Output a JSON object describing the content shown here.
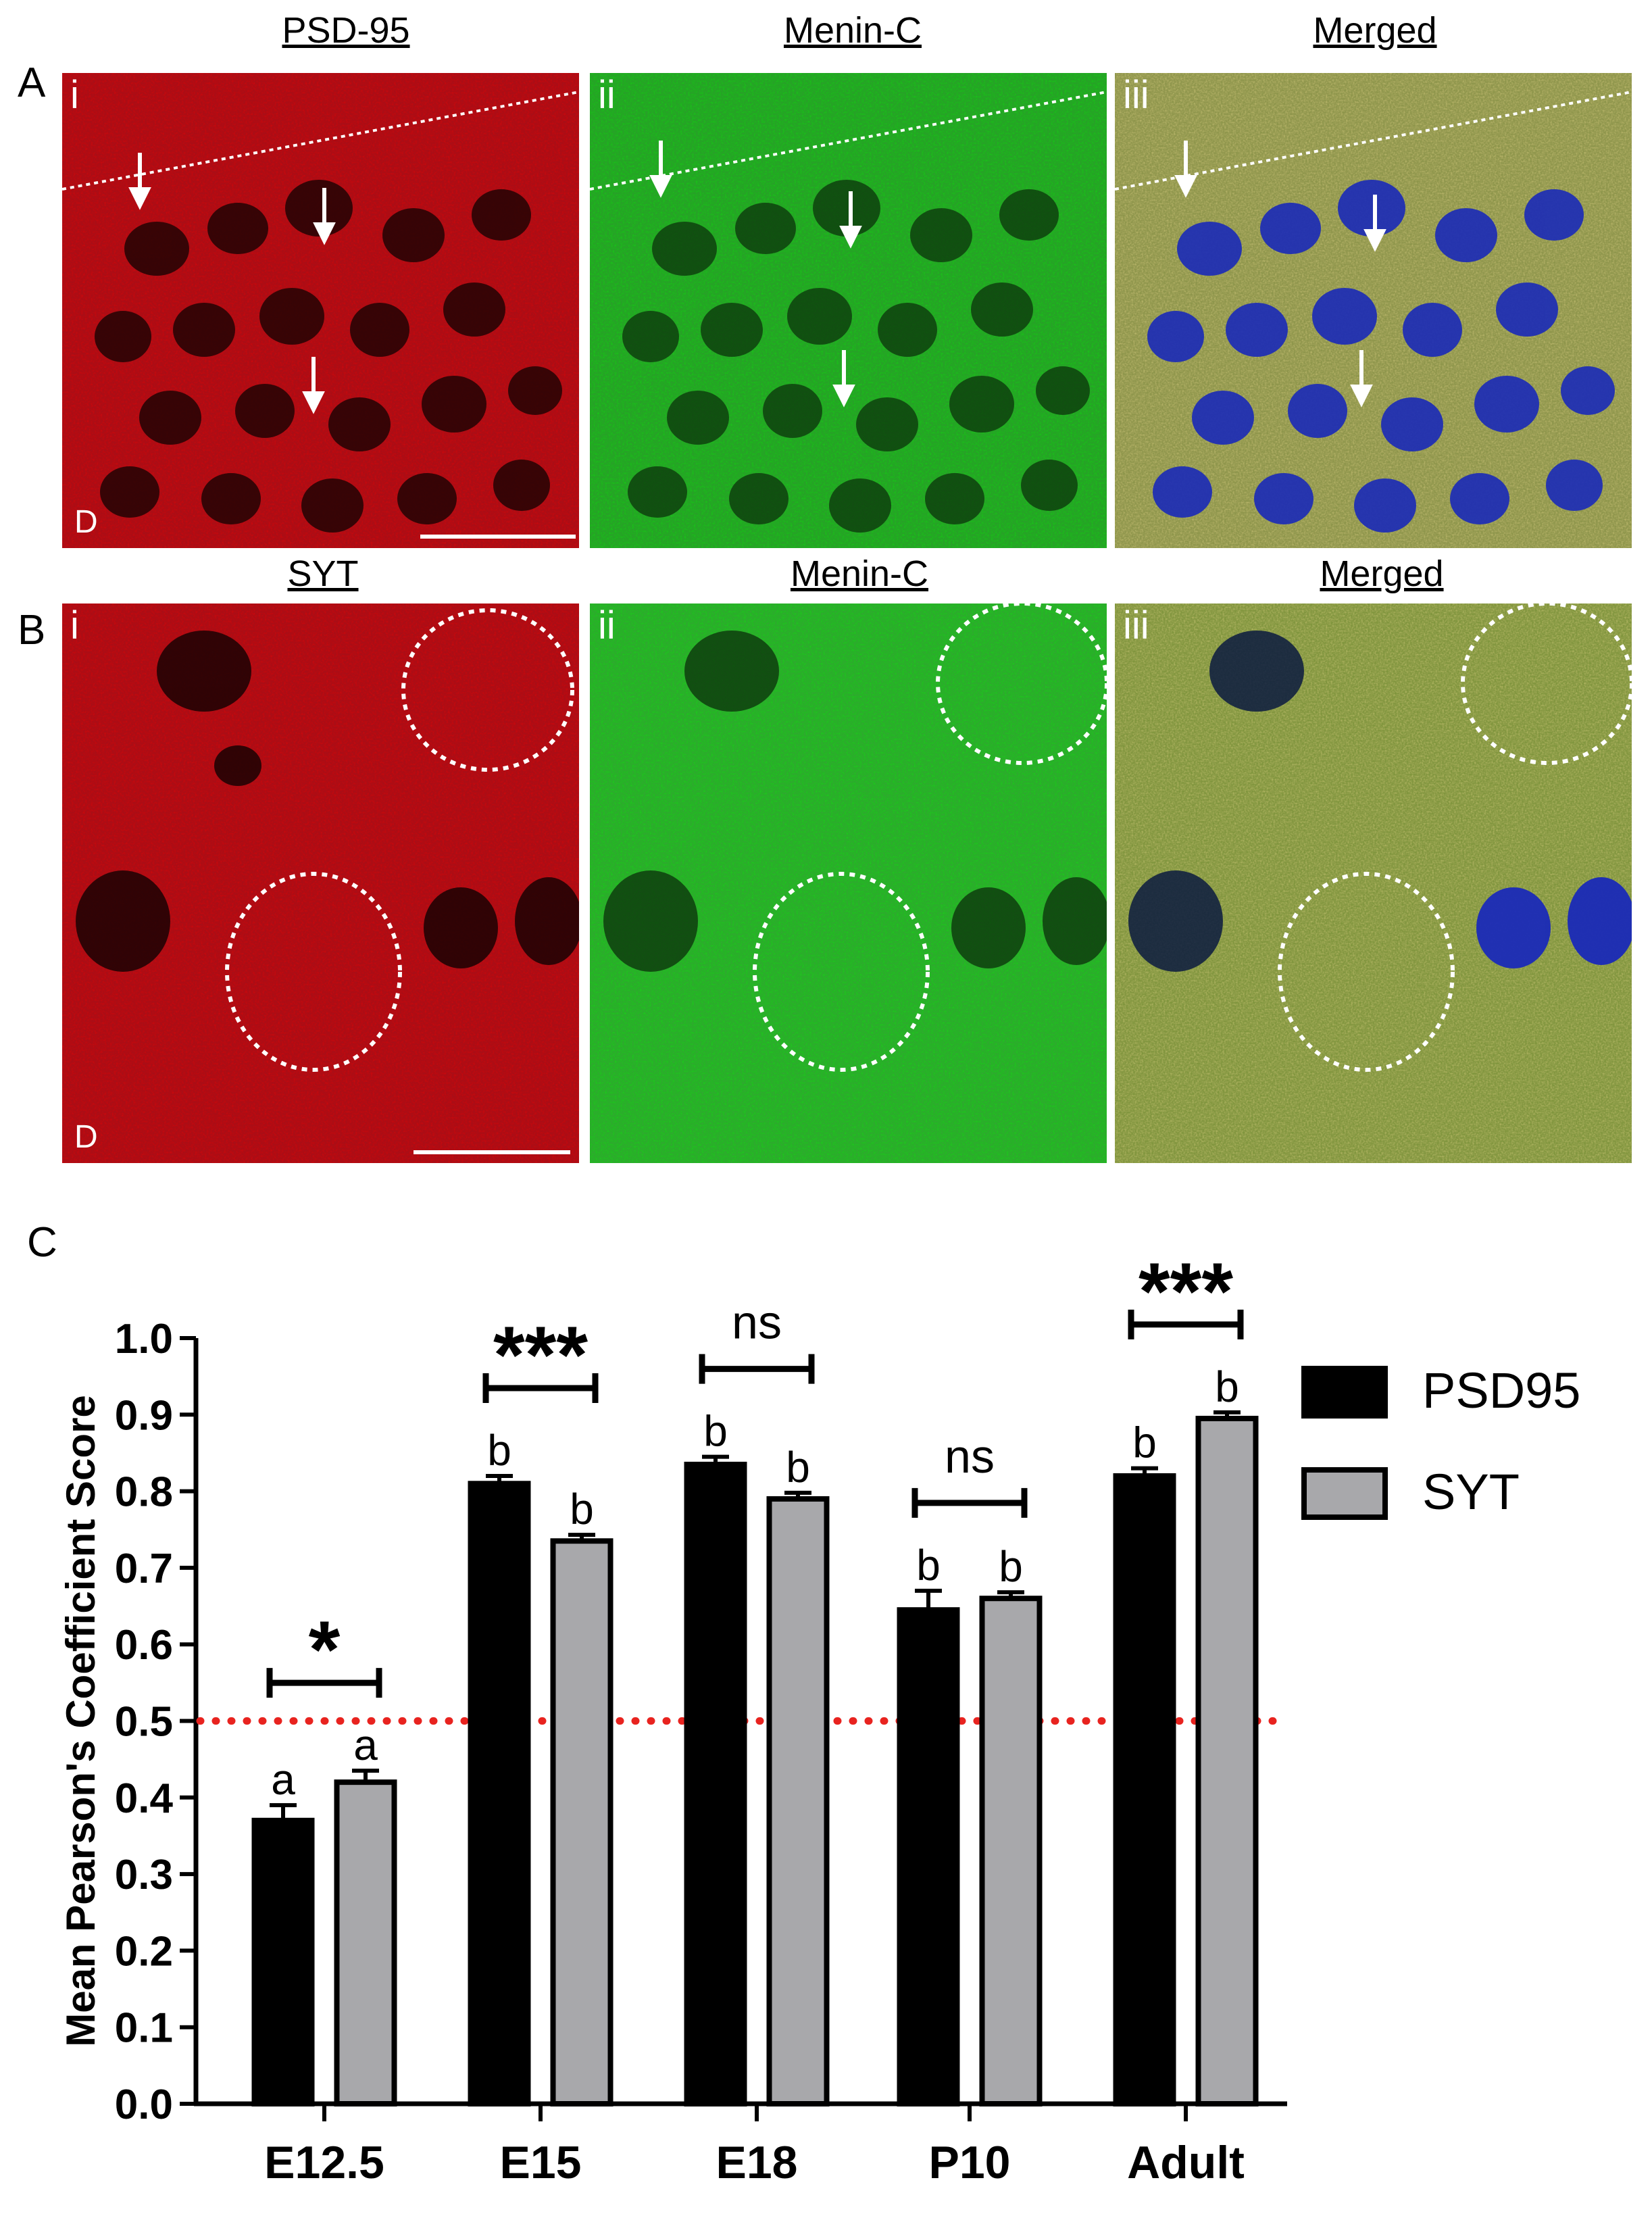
{
  "figure": {
    "panel_letters": {
      "a": "A",
      "b": "B",
      "c": "C"
    },
    "row_a": {
      "titles": [
        "PSD-95",
        "Menin-C",
        "Merged"
      ],
      "numerals": [
        "i",
        "ii",
        "iii"
      ],
      "orientation_label": "D"
    },
    "row_b": {
      "titles": [
        "SYT",
        "Menin-C",
        "Merged"
      ],
      "numerals": [
        "i",
        "ii",
        "iii"
      ],
      "orientation_label": "D"
    },
    "colors": {
      "red_channel": "#b0101a",
      "green_channel": "#2ea52e",
      "merged": "#7f9a3a",
      "nuclei": "#1a2ab8"
    }
  },
  "chart_data": {
    "type": "bar",
    "title": "",
    "xlabel": "",
    "ylabel": "Mean Pearson's Coefficient Score",
    "categories": [
      "E12.5",
      "E15",
      "E18",
      "P10",
      "Adult"
    ],
    "ylim": [
      0.0,
      1.0
    ],
    "yticks": [
      "0.0",
      "0.1",
      "0.2",
      "0.3",
      "0.4",
      "0.5",
      "0.6",
      "0.7",
      "0.8",
      "0.9",
      "1.0"
    ],
    "series": [
      {
        "name": "PSD95",
        "color": "#000000",
        "values": [
          0.37,
          0.81,
          0.835,
          0.645,
          0.82
        ],
        "errors": [
          0.02,
          0.01,
          0.01,
          0.025,
          0.01
        ],
        "letters": [
          "a",
          "b",
          "b",
          "b",
          "b"
        ]
      },
      {
        "name": "SYT",
        "color": "#a8a8ab",
        "values": [
          0.42,
          0.735,
          0.79,
          0.66,
          0.895
        ],
        "errors": [
          0.015,
          0.008,
          0.008,
          0.008,
          0.008
        ],
        "letters": [
          "a",
          "b",
          "b",
          "b",
          "b"
        ]
      }
    ],
    "significance": [
      "*",
      "***",
      "ns",
      "ns",
      "***"
    ],
    "reference_line": {
      "value": 0.5,
      "color": "#e8231f",
      "style": "dotted"
    },
    "grid": false,
    "legend": "right"
  }
}
